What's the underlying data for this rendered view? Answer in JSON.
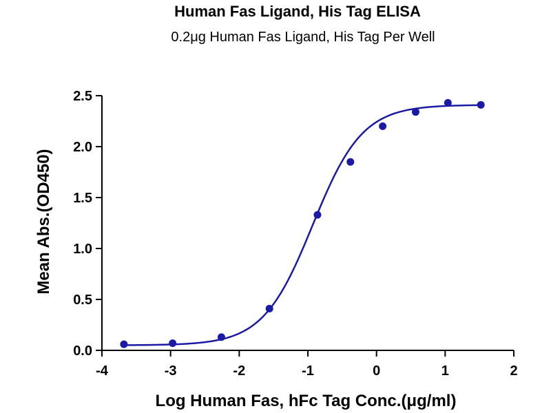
{
  "chart_data": {
    "type": "scatter",
    "title": "Human Fas Ligand, His Tag ELISA",
    "subtitle": "0.2μg Human Fas Ligand, His Tag Per Well",
    "xlabel": "Log Human Fas, hFc Tag Conc.(μg/ml)",
    "ylabel": "Mean Abs.(OD450)",
    "xlim": [
      -4,
      2
    ],
    "ylim": [
      0,
      2.5
    ],
    "x_ticks": [
      -4,
      -3,
      -2,
      -1,
      0,
      1,
      2
    ],
    "x_tick_labels": [
      "-4",
      "-3",
      "-2",
      "-1",
      "0",
      "1",
      "2"
    ],
    "y_ticks": [
      0,
      0.5,
      1.0,
      1.5,
      2.0,
      2.5
    ],
    "y_tick_labels": [
      "0.0",
      "0.5",
      "1.0",
      "1.5",
      "2.0",
      "2.5"
    ],
    "grid": false,
    "legend": "none",
    "color": "#1a1aa6",
    "series": [
      {
        "x": [
          -3.68,
          -2.97,
          -2.26,
          -1.56,
          -0.86,
          -0.38,
          0.09,
          0.57,
          1.04,
          1.52
        ],
        "y": [
          0.06,
          0.07,
          0.13,
          0.41,
          1.33,
          1.85,
          2.2,
          2.34,
          2.43,
          2.41
        ]
      }
    ],
    "fit_curve": {
      "model": "4PL",
      "bottom": 0.05,
      "top": 2.41,
      "log_ec50": -0.93,
      "hill_slope": 1.2,
      "x_range": [
        -3.68,
        1.52
      ]
    }
  }
}
